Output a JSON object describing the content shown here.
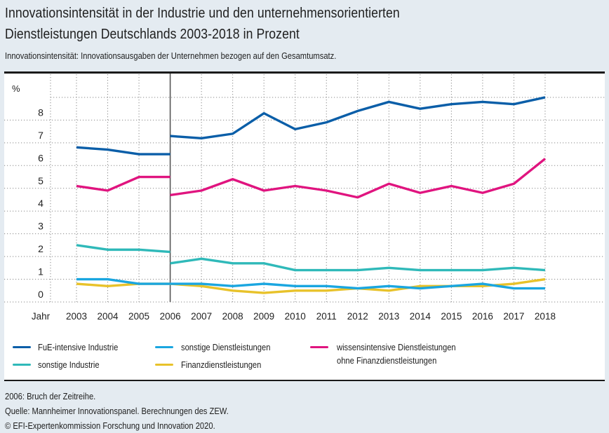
{
  "title_line1": "Innovationsintensität in der Industrie und den unternehmensorientierten",
  "title_line2": "Dienstleistungen Deutschlands 2003-2018 in Prozent",
  "subtitle": "Innovationsintensität: Innovationsausgaben der Unternehmen bezogen auf den Gesamtumsatz.",
  "notes": [
    "2006: Bruch der Zeitreihe.",
    "Quelle: Mannheimer Innovationspanel. Berechnungen des ZEW.",
    "© EFI-Expertenkommission Forschung und Innovation 2020."
  ],
  "chart_data": {
    "type": "line",
    "title": "Innovationsintensität in der Industrie und den unternehmensorientierten Dienstleistungen Deutschlands 2003-2018 in Prozent",
    "xlabel": "Jahr",
    "ylabel": "%",
    "ylim": [
      0,
      9
    ],
    "yticks": [
      "0",
      "1",
      "2",
      "3",
      "4",
      "5",
      "6",
      "7",
      "8"
    ],
    "grid": true,
    "legend_position": "bottom",
    "x": [
      "2003",
      "2004",
      "2005",
      "2006",
      "2007",
      "2008",
      "2009",
      "2010",
      "2011",
      "2012",
      "2013",
      "2014",
      "2015",
      "2016",
      "2017",
      "2018"
    ],
    "break_year": "2006",
    "annotation": "2006: Bruch der Zeitreihe.",
    "series": [
      {
        "name": "FuE-intensive Industrie",
        "color": "#0a5ea8",
        "before_break": [
          6.8,
          6.7,
          6.5,
          6.5
        ],
        "after_break": [
          7.3,
          7.2,
          7.4,
          8.3,
          7.6,
          7.9,
          8.4,
          8.8,
          8.5,
          8.7,
          8.8,
          8.7,
          9.0
        ]
      },
      {
        "name": "sonstige Industrie",
        "color": "#2fb9b9",
        "before_break": [
          2.5,
          2.3,
          2.3,
          2.2
        ],
        "after_break": [
          1.7,
          1.9,
          1.7,
          1.7,
          1.4,
          1.4,
          1.4,
          1.5,
          1.4,
          1.4,
          1.4,
          1.5,
          1.4
        ]
      },
      {
        "name": "sonstige Dienstleistungen",
        "color": "#1aa6e0",
        "before_break": [
          1.0,
          1.0,
          0.8,
          0.8
        ],
        "after_break": [
          0.8,
          0.8,
          0.7,
          0.8,
          0.7,
          0.7,
          0.6,
          0.7,
          0.6,
          0.7,
          0.8,
          0.6,
          0.6
        ]
      },
      {
        "name": "Finanzdienstleistungen",
        "color": "#e8c22a",
        "before_break": [
          0.8,
          0.7,
          0.8,
          0.8
        ],
        "after_break": [
          0.8,
          0.7,
          0.5,
          0.4,
          0.5,
          0.5,
          0.6,
          0.5,
          0.7,
          0.7,
          0.7,
          0.8,
          1.0
        ]
      },
      {
        "name": "wissensintensive Dienstleistungen ohne Finanzdienstleistungen",
        "color": "#e0147f",
        "before_break": [
          5.1,
          4.9,
          5.5,
          5.5
        ],
        "after_break": [
          4.7,
          4.9,
          5.4,
          4.9,
          5.1,
          4.9,
          4.6,
          5.2,
          4.8,
          5.1,
          4.8,
          5.2,
          6.3
        ]
      }
    ]
  },
  "legend": [
    {
      "label": "FuE-intensive Industrie",
      "color": "#0a5ea8"
    },
    {
      "label": "sonstige Industrie",
      "color": "#2fb9b9"
    },
    {
      "label": "sonstige Dienstleistungen",
      "color": "#1aa6e0"
    },
    {
      "label": "Finanzdienstleistungen",
      "color": "#e8c22a"
    },
    {
      "label_line1": "wissensintensive Dienstleistungen",
      "label_line2": "ohne Finanzdienstleistungen",
      "color": "#e0147f"
    }
  ]
}
